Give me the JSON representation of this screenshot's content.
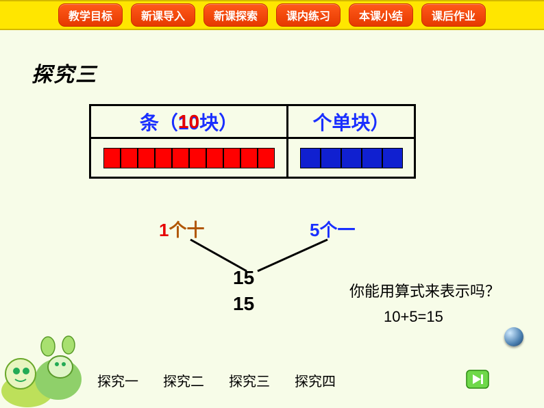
{
  "nav": {
    "items": [
      "教学目标",
      "新课导入",
      "新课探索",
      "课内练习",
      "本课小结",
      "课后作业"
    ]
  },
  "title": "探究三",
  "table": {
    "tens_header_blue": "条（10块）",
    "tens_header_red_overlay": "10",
    "ones_header": "个单块）",
    "tens_blocks": {
      "count": 10,
      "color": "#ff0000"
    },
    "ones_blocks": {
      "count": 5,
      "color": "#1020d0"
    },
    "border_color": "#000000"
  },
  "diagram": {
    "ten_label_num": "1",
    "ten_label_txt": "个十",
    "one_label": "5个一",
    "sum1": "15",
    "sum2": "15",
    "line_color": "#000000",
    "line_width": 3,
    "ten_num_color": "#e60000",
    "ten_txt_color": "#b05600",
    "one_color": "#1a2fff"
  },
  "question": "你能用算式来表示吗？",
  "equation": "10+5=15",
  "explore": {
    "items": [
      "探究一",
      "探究二",
      "探究三",
      "探究四"
    ]
  },
  "colors": {
    "page_bg": "#f7fce8",
    "topbar_bg": "#ffe600",
    "nav_btn_bg": "#ff5a1a",
    "nav_btn_text": "#ffffff"
  }
}
